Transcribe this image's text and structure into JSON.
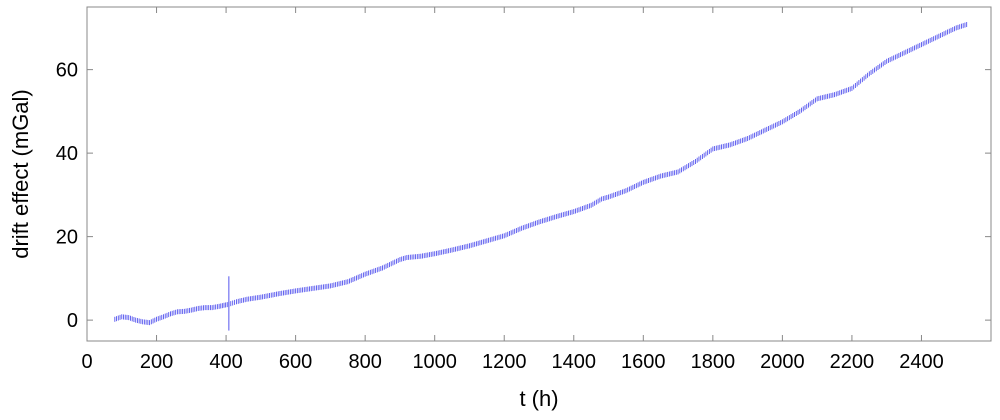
{
  "chart_data": {
    "type": "scatter",
    "title": "",
    "xlabel": "t (h)",
    "ylabel": "drift effect (mGal)",
    "xlim": [
      0,
      2600
    ],
    "ylim": [
      -5,
      75
    ],
    "xticks": [
      0,
      200,
      400,
      600,
      800,
      1000,
      1200,
      1400,
      1600,
      1800,
      2000,
      2200,
      2400
    ],
    "yticks": [
      0,
      20,
      40,
      60
    ],
    "grid": false,
    "legend": "none",
    "marker": "vertical error bar",
    "error_half_width": 0.6,
    "outlier": {
      "x": 408,
      "y": 4.0,
      "error": 6.5
    },
    "series": [
      {
        "color": "#5555ee",
        "points": [
          [
            80,
            0.2
          ],
          [
            100,
            0.8
          ],
          [
            120,
            0.6
          ],
          [
            140,
            0.0
          ],
          [
            160,
            -0.4
          ],
          [
            180,
            -0.6
          ],
          [
            200,
            0.2
          ],
          [
            220,
            0.8
          ],
          [
            240,
            1.5
          ],
          [
            260,
            2.0
          ],
          [
            280,
            2.1
          ],
          [
            300,
            2.4
          ],
          [
            320,
            2.8
          ],
          [
            340,
            3.0
          ],
          [
            360,
            3.0
          ],
          [
            380,
            3.3
          ],
          [
            408,
            3.8
          ],
          [
            430,
            4.4
          ],
          [
            460,
            5.0
          ],
          [
            500,
            5.5
          ],
          [
            550,
            6.3
          ],
          [
            600,
            7.0
          ],
          [
            650,
            7.6
          ],
          [
            700,
            8.2
          ],
          [
            750,
            9.2
          ],
          [
            800,
            11.0
          ],
          [
            850,
            12.5
          ],
          [
            900,
            14.5
          ],
          [
            920,
            15.0
          ],
          [
            960,
            15.3
          ],
          [
            1000,
            15.9
          ],
          [
            1050,
            16.8
          ],
          [
            1100,
            17.8
          ],
          [
            1150,
            19.0
          ],
          [
            1200,
            20.2
          ],
          [
            1250,
            22.0
          ],
          [
            1300,
            23.5
          ],
          [
            1350,
            24.8
          ],
          [
            1400,
            26.0
          ],
          [
            1450,
            27.5
          ],
          [
            1480,
            29.0
          ],
          [
            1500,
            29.5
          ],
          [
            1550,
            31.0
          ],
          [
            1600,
            33.0
          ],
          [
            1650,
            34.5
          ],
          [
            1700,
            35.5
          ],
          [
            1750,
            38.0
          ],
          [
            1800,
            41.0
          ],
          [
            1850,
            42.0
          ],
          [
            1900,
            43.5
          ],
          [
            1950,
            45.5
          ],
          [
            2000,
            47.5
          ],
          [
            2050,
            50.0
          ],
          [
            2100,
            53.0
          ],
          [
            2150,
            54.0
          ],
          [
            2200,
            55.5
          ],
          [
            2250,
            59.0
          ],
          [
            2300,
            62.0
          ],
          [
            2350,
            64.0
          ],
          [
            2400,
            66.0
          ],
          [
            2450,
            68.0
          ],
          [
            2500,
            70.0
          ],
          [
            2530,
            70.8
          ]
        ]
      }
    ]
  }
}
